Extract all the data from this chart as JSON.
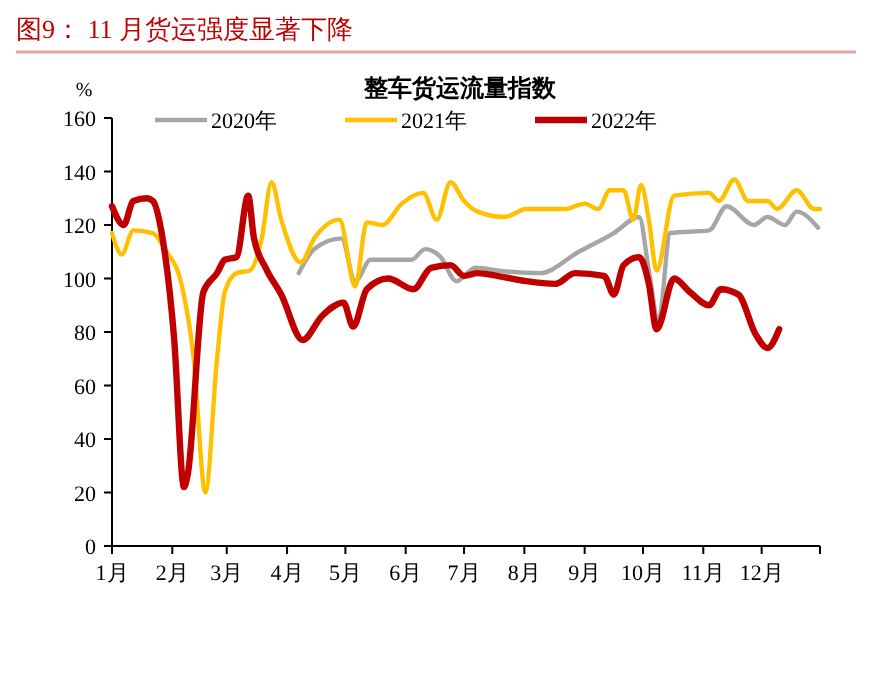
{
  "chart_data": {
    "type": "line",
    "title": "图9：  11 月货运强度显著下降",
    "subtitle": "整车货运流量指数",
    "ylabel": "%",
    "legend": "top",
    "grid": false,
    "xlim": [
      "--01-01",
      "--12-31"
    ],
    "xticks": [
      {
        "value": "--01-01",
        "label": "1月"
      },
      {
        "value": "--02-01",
        "label": "2月"
      },
      {
        "value": "--03-01",
        "label": "3月"
      },
      {
        "value": "--04-01",
        "label": "4月"
      },
      {
        "value": "--05-01",
        "label": "5月"
      },
      {
        "value": "--06-01",
        "label": "6月"
      },
      {
        "value": "--07-01",
        "label": "7月"
      },
      {
        "value": "--08-01",
        "label": "8月"
      },
      {
        "value": "--09-01",
        "label": "9月"
      },
      {
        "value": "--10-01",
        "label": "10月"
      },
      {
        "value": "--11-01",
        "label": "11月"
      },
      {
        "value": "--12-01",
        "label": "12月"
      },
      {
        "value": "--12-31",
        "label": null
      }
    ],
    "ylim": [
      0,
      160
    ],
    "yticks": [
      0,
      20,
      40,
      60,
      80,
      100,
      120,
      140,
      160
    ],
    "series": [
      {
        "name": "2020年",
        "color": "#a6a6a6",
        "x": [
          "--04-07",
          "--04-15",
          "--04-29",
          "--05-06",
          "--05-14",
          "--06-04",
          "--06-11",
          "--06-19",
          "--06-27",
          "--07-07",
          "--07-18",
          "--08-09",
          "--08-29",
          "--09-16",
          "--09-29",
          "--10-04",
          "--10-09",
          "--10-15",
          "--11-04",
          "--11-13",
          "--11-27",
          "--12-04",
          "--12-13",
          "--12-19",
          "--12-30"
        ],
        "values": [
          102,
          111,
          115,
          99,
          107,
          107,
          111,
          108,
          99,
          104,
          103,
          102,
          110,
          117,
          123,
          103,
          84,
          117,
          118,
          127,
          120,
          123,
          120,
          125,
          119
        ]
      },
      {
        "name": "2021年",
        "color": "#ffc000",
        "x": [
          "--01-01",
          "--01-06",
          "--01-12",
          "--01-22",
          "--01-29",
          "--02-05",
          "--02-12",
          "--02-18",
          "--02-24",
          "--02-28",
          "--03-06",
          "--03-13",
          "--03-19",
          "--03-24",
          "--03-29",
          "--04-08",
          "--04-15",
          "--04-28",
          "--05-06",
          "--05-12",
          "--05-20",
          "--05-30",
          "--06-10",
          "--06-17",
          "--06-24",
          "--07-01",
          "--07-08",
          "--07-22",
          "--08-02",
          "--08-22",
          "--09-01",
          "--09-08",
          "--09-14",
          "--09-21",
          "--09-26",
          "--09-30",
          "--10-04",
          "--10-08",
          "--10-17",
          "--11-04",
          "--11-09",
          "--11-17",
          "--11-24",
          "--12-04",
          "--12-09",
          "--12-19",
          "--12-28",
          "--12-31"
        ],
        "values": [
          117,
          109,
          118,
          117,
          110,
          100,
          70,
          20,
          70,
          95,
          102,
          103,
          115,
          136,
          122,
          106,
          115,
          122,
          97,
          121,
          120,
          128,
          132,
          122,
          136,
          129,
          125,
          123,
          126,
          126,
          128,
          126,
          133,
          133,
          122,
          135,
          122,
          103,
          131,
          132,
          129,
          137,
          129,
          129,
          126,
          133,
          126,
          126
        ]
      },
      {
        "name": "2022年",
        "color": "#c00000",
        "x": [
          "--01-01",
          "--01-07",
          "--01-12",
          "--01-19",
          "--01-22",
          "--01-27",
          "--02-02",
          "--02-07",
          "--02-09",
          "--02-17",
          "--02-24",
          "--02-28",
          "--03-06",
          "--03-12",
          "--03-15",
          "--03-21",
          "--03-29",
          "--04-09",
          "--04-19",
          "--04-30",
          "--05-05",
          "--05-12",
          "--05-23",
          "--06-05",
          "--06-14",
          "--06-24",
          "--07-01",
          "--07-08",
          "--07-18",
          "--08-02",
          "--08-17",
          "--08-27",
          "--09-11",
          "--09-16",
          "--09-21",
          "--09-29",
          "--10-04",
          "--10-08",
          "--10-17",
          "--10-25",
          "--11-04",
          "--11-10",
          "--11-19",
          "--11-28",
          "--12-04",
          "--12-10"
        ],
        "values": [
          127,
          120,
          129,
          130,
          129,
          115,
          77,
          22,
          27,
          95,
          102,
          107,
          108,
          131,
          115,
          104,
          94,
          77,
          86,
          91,
          82,
          96,
          100,
          96,
          104,
          105,
          101,
          102,
          101,
          99,
          98,
          102,
          101,
          94,
          105,
          108,
          98,
          81,
          100,
          95,
          90,
          96,
          94,
          79,
          74,
          81
        ]
      }
    ]
  }
}
